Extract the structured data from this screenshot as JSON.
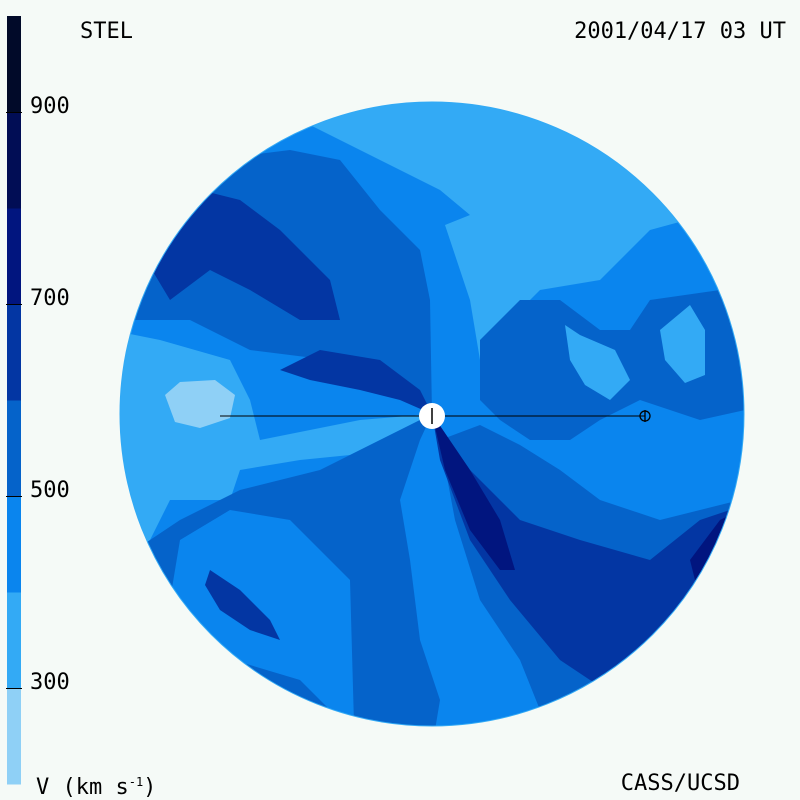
{
  "header": {
    "station": "STEL",
    "datetime": "2001/04/17 03 UT"
  },
  "footer": {
    "unit": "V (km s",
    "unit_sup": "-1",
    "unit_close": ")",
    "credit": "CASS/UCSD"
  },
  "colorbar": {
    "ticks": [
      "300",
      "500",
      "700",
      "900"
    ],
    "levels": [
      {
        "from": 200,
        "to": 300,
        "color": "#8fd0f6"
      },
      {
        "from": 300,
        "to": 400,
        "color": "#33aaf5"
      },
      {
        "from": 400,
        "to": 500,
        "color": "#0a85ee"
      },
      {
        "from": 500,
        "to": 600,
        "color": "#0563ca"
      },
      {
        "from": 600,
        "to": 700,
        "color": "#0336a3"
      },
      {
        "from": 700,
        "to": 800,
        "color": "#01157f"
      },
      {
        "from": 800,
        "to": 900,
        "color": "#010d55"
      },
      {
        "from": 900,
        "to": 1000,
        "color": "#010a29"
      }
    ]
  },
  "chart_data": {
    "type": "heatmap",
    "title": "STEL",
    "timestamp": "2001/04/17 03 UT",
    "quantity": "V (km s-1)",
    "colorbar_range": [
      200,
      1000
    ],
    "colorbar_ticks": [
      300,
      500,
      700,
      900
    ],
    "projection": "ecliptic plane map of solar wind speed",
    "markers": [
      "Sun",
      "Earth"
    ]
  }
}
